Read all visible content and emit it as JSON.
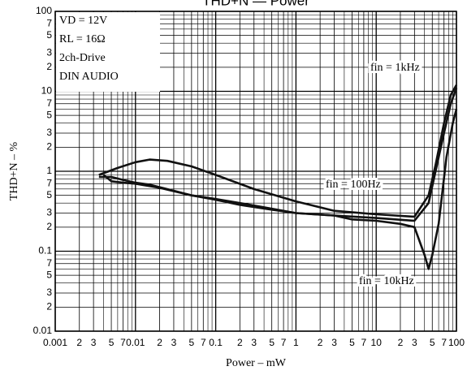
{
  "chart_data": {
    "type": "line",
    "title": "THD+N — Power",
    "xlabel": "Power  –  mW",
    "ylabel": "THD+N  –  %",
    "log_x": true,
    "log_y": true,
    "grid": true,
    "conditions": [
      "VD = 12V",
      "RL = 16Ω",
      "2ch-Drive",
      "DIN AUDIO"
    ],
    "xlim": [
      0.001,
      100
    ],
    "ylim": [
      0.01,
      100
    ],
    "xticks": [
      0.001,
      {
        "value": 0.002,
        "label": "2"
      },
      {
        "value": 0.003,
        "label": "3"
      },
      {
        "value": 0.005,
        "label": "5"
      },
      {
        "value": 0.007,
        "label": "7"
      },
      0.01,
      {
        "value": 0.02,
        "label": "2"
      },
      {
        "value": 0.03,
        "label": "3"
      },
      {
        "value": 0.05,
        "label": "5"
      },
      {
        "value": 0.07,
        "label": "7"
      },
      0.1,
      {
        "value": 0.2,
        "label": "2"
      },
      {
        "value": 0.3,
        "label": "3"
      },
      {
        "value": 0.5,
        "label": "5"
      },
      {
        "value": 0.7,
        "label": "7"
      },
      1,
      {
        "value": 2,
        "label": "2"
      },
      {
        "value": 3,
        "label": "3"
      },
      {
        "value": 5,
        "label": "5"
      },
      {
        "value": 7,
        "label": "7"
      },
      10,
      {
        "value": 20,
        "label": "2"
      },
      {
        "value": 30,
        "label": "3"
      },
      {
        "value": 50,
        "label": "5"
      },
      {
        "value": 70,
        "label": "7"
      },
      100
    ],
    "minor_xticks": [
      0.004,
      0.006,
      0.008,
      0.009,
      0.04,
      0.06,
      0.08,
      0.09,
      0.4,
      0.6,
      0.8,
      0.9,
      4,
      6,
      8,
      9,
      40,
      60,
      80,
      90
    ],
    "yticks": [
      0.01,
      {
        "value": 0.02,
        "label": "2"
      },
      {
        "value": 0.03,
        "label": "3"
      },
      {
        "value": 0.05,
        "label": "5"
      },
      {
        "value": 0.07,
        "label": "7"
      },
      0.1,
      {
        "value": 0.2,
        "label": "2"
      },
      {
        "value": 0.3,
        "label": "3"
      },
      {
        "value": 0.5,
        "label": "5"
      },
      {
        "value": 0.7,
        "label": "7"
      },
      1,
      {
        "value": 2,
        "label": "2"
      },
      {
        "value": 3,
        "label": "3"
      },
      {
        "value": 5,
        "label": "5"
      },
      {
        "value": 7,
        "label": "7"
      },
      10,
      {
        "value": 20,
        "label": "2"
      },
      {
        "value": 30,
        "label": "3"
      },
      {
        "value": 50,
        "label": "5"
      },
      {
        "value": 70,
        "label": "7"
      },
      100
    ],
    "minor_yticks": [
      0.04,
      0.06,
      0.08,
      0.09,
      0.4,
      0.6,
      0.8,
      0.9,
      4,
      6,
      8,
      9,
      40,
      60,
      80,
      90
    ],
    "series": [
      {
        "name": "fin = 1kHz",
        "color": "#111111",
        "x": [
          0.0035,
          0.006,
          0.01,
          0.015,
          0.025,
          0.05,
          0.1,
          0.3,
          1,
          3,
          10,
          30,
          45,
          55,
          70,
          85,
          100
        ],
        "values": [
          0.9,
          1.1,
          1.3,
          1.4,
          1.35,
          1.15,
          0.9,
          0.6,
          0.42,
          0.32,
          0.29,
          0.27,
          0.5,
          1.2,
          4,
          9,
          12
        ]
      },
      {
        "name": "fin = 100Hz",
        "color": "#111111",
        "x": [
          0.004,
          0.005,
          0.007,
          0.01,
          0.02,
          0.05,
          0.1,
          0.2,
          0.5,
          1,
          3,
          10,
          30,
          45,
          55,
          70,
          85,
          100
        ],
        "values": [
          0.9,
          0.75,
          0.72,
          0.7,
          0.62,
          0.5,
          0.45,
          0.4,
          0.34,
          0.3,
          0.28,
          0.26,
          0.24,
          0.4,
          1,
          3,
          7,
          11
        ]
      },
      {
        "name": "fin = 10kHz",
        "color": "#111111",
        "x": [
          0.0035,
          0.005,
          0.007,
          0.01,
          0.015,
          0.03,
          0.05,
          0.1,
          0.2,
          0.5,
          1,
          3,
          5,
          10,
          20,
          30,
          40,
          45,
          50,
          60,
          75,
          90,
          100
        ],
        "values": [
          0.85,
          0.85,
          0.78,
          0.72,
          0.68,
          0.57,
          0.5,
          0.44,
          0.38,
          0.33,
          0.3,
          0.28,
          0.25,
          0.24,
          0.22,
          0.2,
          0.09,
          0.06,
          0.09,
          0.22,
          1.5,
          4,
          6
        ]
      }
    ]
  }
}
